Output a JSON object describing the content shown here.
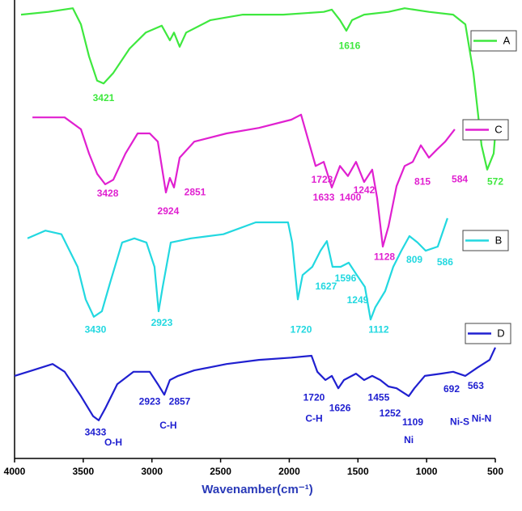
{
  "chart_data": {
    "type": "line",
    "x_label": "Wavenamber(cm⁻¹)",
    "xlim": [
      4000,
      500
    ],
    "xticks": [
      4000,
      3500,
      3000,
      2500,
      2000,
      1500,
      1000,
      500
    ],
    "ylim": [
      0,
      100
    ],
    "legend": "right",
    "series": [
      {
        "name": "A",
        "color": "#3ee83e",
        "x": [
          3953,
          3753,
          3576,
          3517,
          3458,
          3399,
          3352,
          3281,
          3163,
          3045,
          2928,
          2869,
          2839,
          2798,
          2751,
          2574,
          2338,
          2044,
          1749,
          1690,
          1631,
          1584,
          1543,
          1455,
          1278,
          1160,
          983,
          807,
          718,
          659,
          600,
          559,
          512,
          500
        ],
        "values": [
          96.8,
          97.4,
          98.2,
          94.7,
          87.7,
          82.4,
          81.8,
          84.1,
          89.4,
          92.9,
          94.4,
          91.2,
          92.9,
          89.8,
          92.9,
          95.6,
          96.8,
          96.8,
          97.4,
          97.9,
          95.6,
          93.3,
          95.6,
          96.8,
          97.4,
          98.2,
          97.4,
          96.8,
          94.7,
          84.1,
          68.3,
          63.0,
          66.5,
          70.9
        ],
        "annotations": [
          {
            "text": "3421",
            "x": 3352,
            "y": 78.5
          },
          {
            "text": "1616",
            "x": 1561,
            "y": 89.9
          },
          {
            "text": "572",
            "x": 500,
            "y": 60.3
          }
        ]
      },
      {
        "name": "C",
        "color": "#e020d0",
        "x": [
          3870,
          3753,
          3635,
          3517,
          3458,
          3399,
          3340,
          3281,
          3193,
          3104,
          3016,
          2957,
          2898,
          2869,
          2839,
          2798,
          2692,
          2456,
          2221,
          1985,
          1914,
          1867,
          1808,
          1749,
          1690,
          1631,
          1573,
          1514,
          1455,
          1396,
          1360,
          1319,
          1278,
          1219,
          1160,
          1101,
          1042,
          983,
          924,
          865,
          795
        ],
        "values": [
          74.4,
          74.4,
          74.4,
          71.8,
          66.5,
          62.1,
          59.8,
          60.8,
          66.5,
          70.9,
          70.9,
          69.1,
          58.0,
          61.2,
          59.1,
          65.6,
          69.1,
          70.9,
          72.1,
          73.9,
          75.0,
          70.0,
          63.8,
          64.7,
          59.1,
          63.8,
          61.6,
          64.7,
          60.3,
          63.0,
          56.8,
          46.2,
          50.6,
          59.4,
          63.8,
          64.7,
          68.3,
          65.6,
          67.4,
          69.1,
          71.8
        ],
        "annotations": [
          {
            "text": "3428",
            "x": 3322,
            "y": 57.7
          },
          {
            "text": "2924",
            "x": 2881,
            "y": 53.8
          },
          {
            "text": "2851",
            "x": 2686,
            "y": 58.0
          },
          {
            "text": "1723",
            "x": 1761,
            "y": 60.7
          },
          {
            "text": "1633",
            "x": 1749,
            "y": 56.8
          },
          {
            "text": "1400",
            "x": 1555,
            "y": 56.8
          },
          {
            "text": "1242",
            "x": 1455,
            "y": 58.4
          },
          {
            "text": "1128",
            "x": 1307,
            "y": 43.9
          },
          {
            "text": "815",
            "x": 1030,
            "y": 60.3
          },
          {
            "text": "584",
            "x": 759,
            "y": 60.8
          }
        ]
      },
      {
        "name": "B",
        "color": "#22d8e0",
        "x": [
          3906,
          3776,
          3659,
          3541,
          3482,
          3423,
          3364,
          3305,
          3217,
          3128,
          3040,
          2981,
          2951,
          2922,
          2863,
          2716,
          2480,
          2244,
          2009,
          1979,
          1938,
          1903,
          1832,
          1773,
          1726,
          1685,
          1626,
          1567,
          1508,
          1449,
          1408,
          1373,
          1302,
          1243,
          1184,
          1125,
          1066,
          1007,
          919,
          848
        ],
        "values": [
          48.0,
          49.7,
          48.9,
          41.8,
          34.7,
          30.9,
          32.1,
          38.3,
          47.1,
          48.0,
          47.1,
          41.8,
          32.1,
          37.4,
          47.1,
          48.0,
          48.9,
          51.5,
          51.5,
          47.1,
          34.7,
          40.0,
          41.8,
          45.3,
          47.4,
          41.8,
          41.8,
          42.7,
          40.0,
          37.4,
          30.3,
          33.0,
          36.5,
          41.8,
          45.3,
          48.5,
          47.1,
          45.3,
          46.2,
          52.4
        ],
        "annotations": [
          {
            "text": "3430",
            "x": 3411,
            "y": 28.0
          },
          {
            "text": "2923",
            "x": 2928,
            "y": 29.5
          },
          {
            "text": "1720",
            "x": 1914,
            "y": 28.0
          },
          {
            "text": "1627",
            "x": 1732,
            "y": 37.4
          },
          {
            "text": "1596",
            "x": 1590,
            "y": 39.2
          },
          {
            "text": "1249",
            "x": 1502,
            "y": 34.4
          },
          {
            "text": "1112",
            "x": 1349,
            "y": 28.0
          },
          {
            "text": "809",
            "x": 1089,
            "y": 43.2
          },
          {
            "text": "586",
            "x": 866,
            "y": 42.7
          }
        ]
      },
      {
        "name": "D",
        "color": "#2020d0",
        "x": [
          4000,
          3870,
          3723,
          3635,
          3517,
          3428,
          3387,
          3340,
          3252,
          3134,
          3016,
          2957,
          2910,
          2869,
          2810,
          2692,
          2456,
          2221,
          1985,
          1838,
          1796,
          1737,
          1690,
          1643,
          1602,
          1514,
          1455,
          1396,
          1337,
          1278,
          1219,
          1130,
          1089,
          1013,
          895,
          807,
          718,
          630,
          541,
          500
        ],
        "values": [
          18.0,
          19.2,
          20.6,
          18.9,
          13.6,
          9.2,
          8.3,
          10.9,
          16.2,
          18.9,
          18.9,
          16.2,
          13.9,
          17.1,
          18.0,
          19.2,
          20.6,
          21.5,
          22.0,
          22.4,
          18.9,
          17.1,
          18.0,
          15.3,
          17.1,
          18.5,
          17.1,
          18.0,
          17.1,
          15.7,
          15.3,
          13.6,
          15.3,
          18.0,
          18.5,
          18.9,
          18.0,
          19.8,
          21.5,
          24.2
        ],
        "annotations": [
          {
            "text": "3433",
            "x": 3411,
            "y": 5.6
          },
          {
            "text": "O-H",
            "x": 3281,
            "y": 3.4
          },
          {
            "text": "2923",
            "x": 3016,
            "y": 12.3
          },
          {
            "text": "2857",
            "x": 2798,
            "y": 12.3
          },
          {
            "text": "C-H",
            "x": 2881,
            "y": 7.1
          },
          {
            "text": "1720",
            "x": 1820,
            "y": 13.2
          },
          {
            "text": "C-H",
            "x": 1820,
            "y": 8.6
          },
          {
            "text": "1626",
            "x": 1631,
            "y": 10.9
          },
          {
            "text": "1455",
            "x": 1349,
            "y": 13.2
          },
          {
            "text": "1252",
            "x": 1266,
            "y": 9.7
          },
          {
            "text": "1109",
            "x": 1101,
            "y": 7.8
          },
          {
            "text": "Ni",
            "x": 1130,
            "y": 3.9
          },
          {
            "text": "692",
            "x": 818,
            "y": 15.0
          },
          {
            "text": "Ni-S",
            "x": 759,
            "y": 7.9
          },
          {
            "text": "563",
            "x": 642,
            "y": 15.7
          },
          {
            "text": "Ni-N",
            "x": 600,
            "y": 8.6
          }
        ]
      }
    ]
  }
}
